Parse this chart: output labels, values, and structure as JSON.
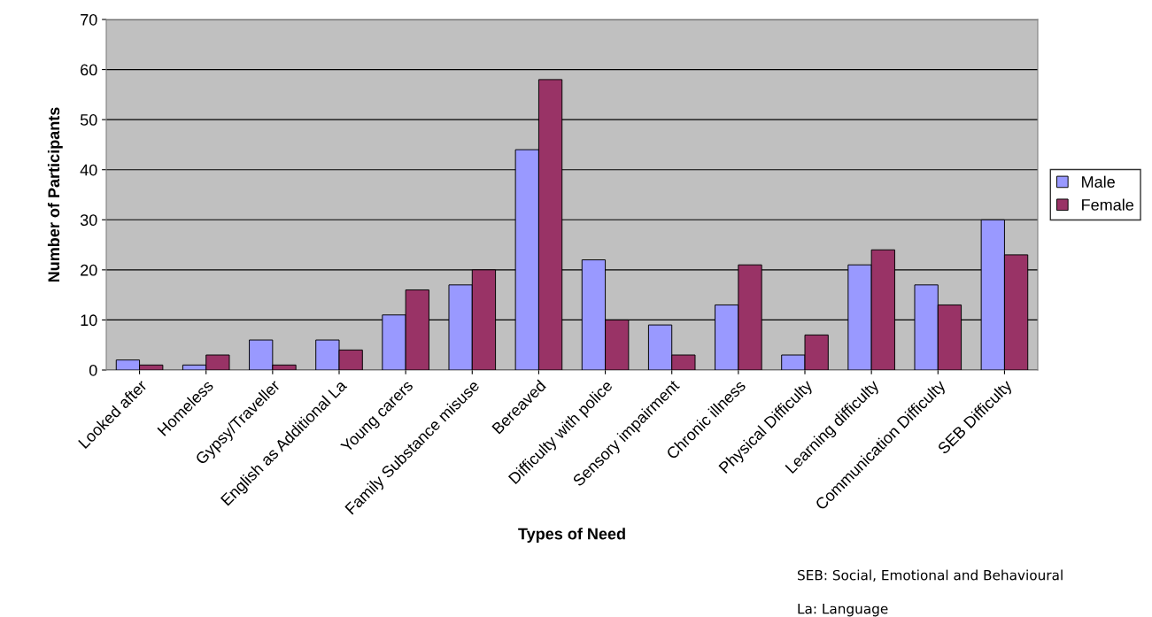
{
  "chart_data": {
    "type": "bar",
    "xlabel": "Types of Need",
    "ylabel": "Number of Participants",
    "categories": [
      "Looked after",
      "Homeless",
      "Gypsy/Traveller",
      "English as Additional La",
      "Young carers",
      "Family Substance misuse",
      "Bereaved",
      "Difficulty with police",
      "Sensory impairment",
      "Chronic illness",
      "Physical Difficulty",
      "Learning difficulty",
      "Communication Difficulty",
      "SEB Difficulty"
    ],
    "series": [
      {
        "name": "Male",
        "color": "#9999ff",
        "values": [
          2,
          1,
          6,
          6,
          11,
          17,
          44,
          22,
          9,
          13,
          3,
          21,
          17,
          30
        ]
      },
      {
        "name": "Female",
        "color": "#993366",
        "values": [
          1,
          3,
          1,
          4,
          16,
          20,
          58,
          10,
          3,
          21,
          7,
          24,
          13,
          23
        ]
      }
    ],
    "ylim": [
      0,
      70
    ],
    "yticks": [
      0,
      10,
      20,
      30,
      40,
      50,
      60,
      70
    ],
    "grid": "y",
    "legend": "right",
    "annotations": [
      "SEB: Social, Emotional and Behavioural",
      "La: Language"
    ]
  }
}
